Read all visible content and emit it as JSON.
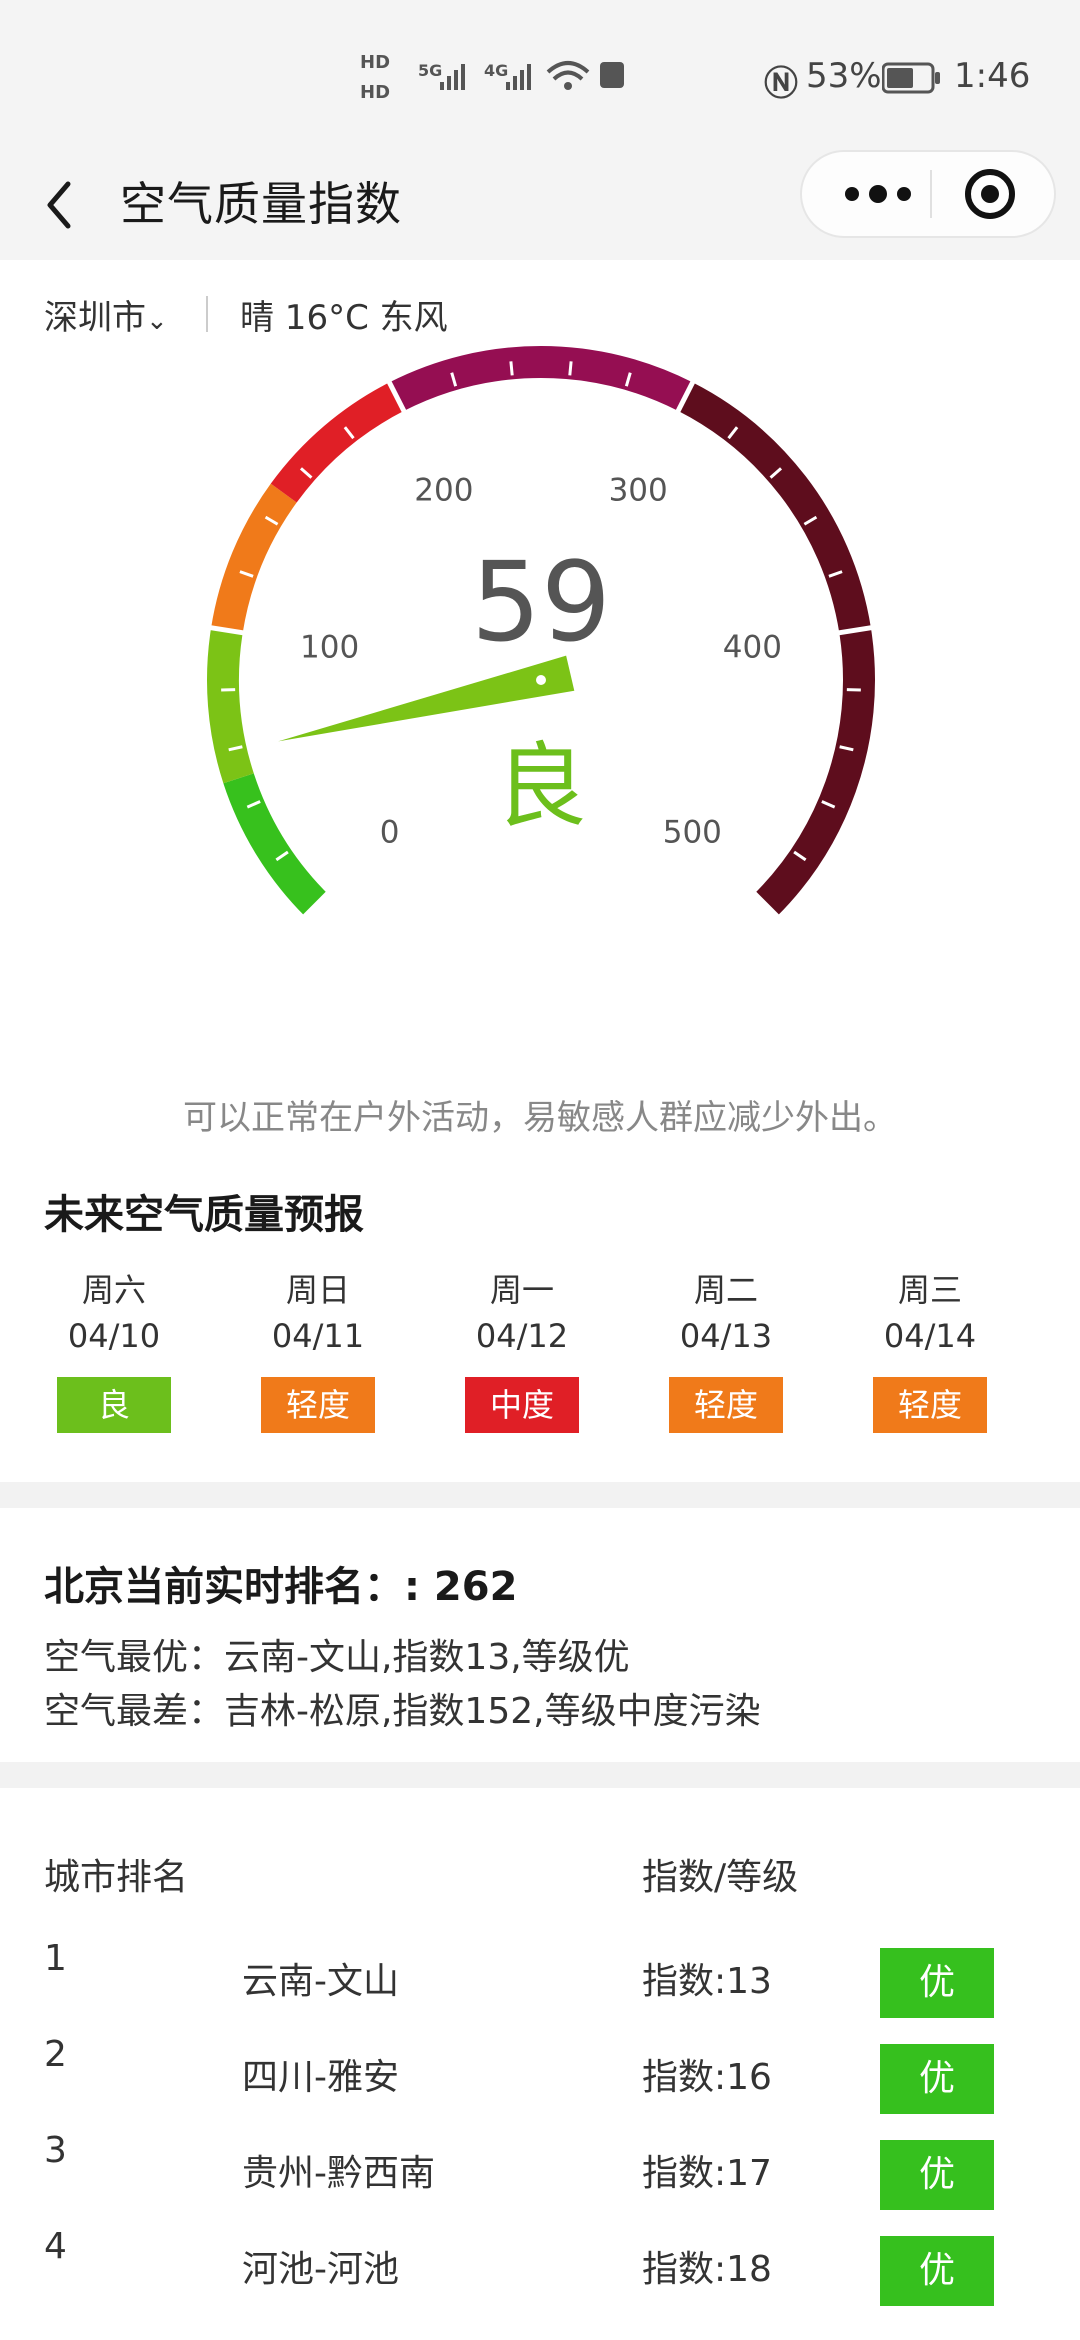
{
  "status_bar": {
    "battery": "53%",
    "time": "1:46",
    "network_left": "5G",
    "network_right": "4G"
  },
  "nav": {
    "title": "空气质量指数"
  },
  "location": {
    "city": "深圳市",
    "weather": "晴 16°C 东风"
  },
  "gauge": {
    "value": "59",
    "value_number": 59,
    "level": "良",
    "level_color": "#6cbf1c",
    "min": 0,
    "max": 500,
    "labels": [
      "0",
      "100",
      "200",
      "300",
      "400",
      "500"
    ]
  },
  "advice": "可以正常在户外活动，易敏感人群应减少外出。",
  "forecast": {
    "title": "未来空气质量预报",
    "days": [
      {
        "day": "周六",
        "date": "04/10",
        "level": "良",
        "color": "#6cbf1c"
      },
      {
        "day": "周日",
        "date": "04/11",
        "level": "轻度",
        "color": "#f07a1a"
      },
      {
        "day": "周一",
        "date": "04/12",
        "level": "中度",
        "color": "#e01f26"
      },
      {
        "day": "周二",
        "date": "04/13",
        "level": "轻度",
        "color": "#f07a1a"
      },
      {
        "day": "周三",
        "date": "04/14",
        "level": "轻度",
        "color": "#f07a1a"
      }
    ]
  },
  "ranking": {
    "title": "北京当前实时排名：: 262",
    "best": "空气最优：云南-文山,指数13,等级优",
    "worst": "空气最差：吉林-松原,指数152,等级中度污染"
  },
  "table": {
    "col_rank": "城市排名",
    "col_index": "指数/等级",
    "rows": [
      {
        "rank": "1",
        "city": "云南-文山",
        "index": "指数:13",
        "level": "优"
      },
      {
        "rank": "2",
        "city": "四川-雅安",
        "index": "指数:16",
        "level": "优"
      },
      {
        "rank": "3",
        "city": "贵州-黔西南",
        "index": "指数:17",
        "level": "优"
      },
      {
        "rank": "4",
        "city": "河池-河池",
        "index": "指数:18",
        "level": "优"
      }
    ]
  }
}
